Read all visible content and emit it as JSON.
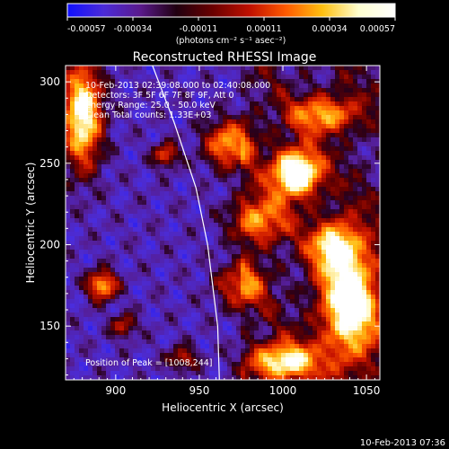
{
  "colorbar": {
    "tick_labels": [
      "-0.00057",
      "-0.00034",
      "-0.00011",
      "0.00011",
      "0.00034",
      "0.00057"
    ],
    "units_label": "(photons cm⁻² s⁻¹ asec⁻²)",
    "colors": [
      "#1010ff",
      "#4b2bd8",
      "#5a1a8c",
      "#200010",
      "#6a0000",
      "#c01000",
      "#ff5a00",
      "#ffc010",
      "#ffffd0",
      "#ffffff"
    ]
  },
  "image": {
    "title": "Reconstructed RHESSI Image",
    "info_lines": [
      "10-Feb-2013 02:39:08.000 to 02:40:08.000",
      "Detectors: 3F 5F 6F 7F 8F 9F, Att 0",
      "Energy Range: 25.0 - 50.0 keV",
      "Clean     Total counts: 1.33E+03"
    ],
    "peak_label": "Position of Peak = [1008,244]",
    "xlabel": "Heliocentric X (arcsec)",
    "ylabel": "Heliocentric Y (arcsec)",
    "x_range": [
      870,
      1058
    ],
    "y_range": [
      117,
      310
    ],
    "x_ticks": [
      900,
      950,
      1000,
      1050
    ],
    "y_ticks": [
      150,
      200,
      250,
      300
    ],
    "limb": [
      [
        922,
        310
      ],
      [
        935,
        275
      ],
      [
        948,
        235
      ],
      [
        955,
        200
      ],
      [
        961,
        150
      ],
      [
        962,
        117
      ]
    ],
    "sources": [
      {
        "x": 1008,
        "y": 244,
        "amp": 1.0,
        "sx": 10,
        "sy": 10
      },
      {
        "x": 880,
        "y": 280,
        "amp": 0.85,
        "sx": 8,
        "sy": 22
      },
      {
        "x": 1040,
        "y": 165,
        "amp": 0.85,
        "sx": 12,
        "sy": 26
      },
      {
        "x": 1000,
        "y": 128,
        "amp": 0.75,
        "sx": 14,
        "sy": 8
      },
      {
        "x": 892,
        "y": 175,
        "amp": 0.65,
        "sx": 6,
        "sy": 6
      },
      {
        "x": 968,
        "y": 262,
        "amp": 0.6,
        "sx": 10,
        "sy": 10
      },
      {
        "x": 1025,
        "y": 280,
        "amp": 0.55,
        "sx": 14,
        "sy": 8
      },
      {
        "x": 1030,
        "y": 200,
        "amp": 0.55,
        "sx": 10,
        "sy": 10
      },
      {
        "x": 985,
        "y": 215,
        "amp": 0.5,
        "sx": 12,
        "sy": 10
      },
      {
        "x": 975,
        "y": 175,
        "amp": 0.45,
        "sx": 10,
        "sy": 10
      },
      {
        "x": 930,
        "y": 255,
        "amp": 0.45,
        "sx": 5,
        "sy": 5
      },
      {
        "x": 905,
        "y": 150,
        "amp": 0.35,
        "sx": 5,
        "sy": 5
      },
      {
        "x": 940,
        "y": 130,
        "amp": 0.35,
        "sx": 6,
        "sy": 5
      }
    ]
  },
  "footer": {
    "timestamp": "10-Feb-2013 07:36"
  }
}
